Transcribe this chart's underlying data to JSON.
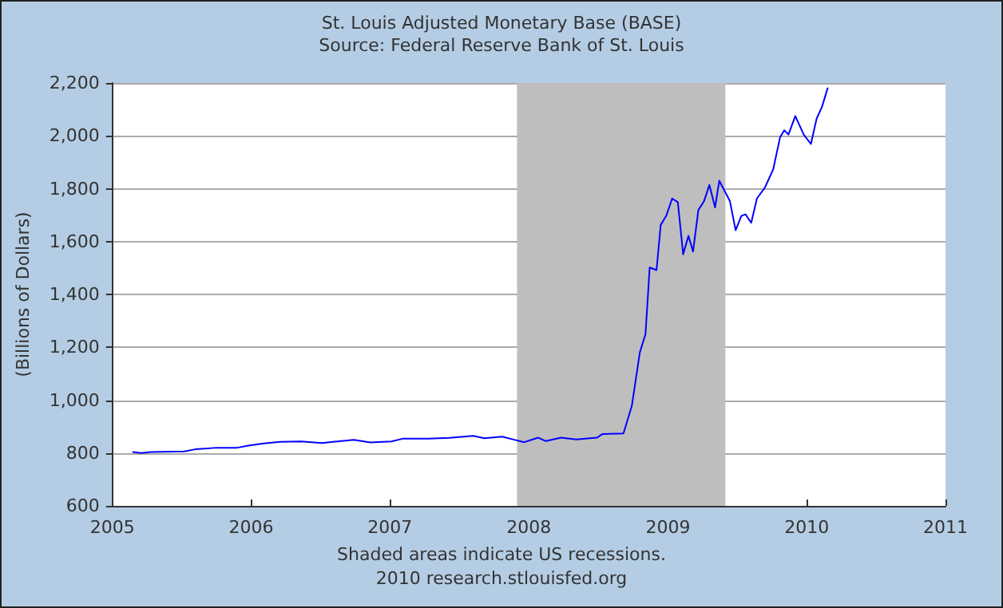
{
  "chart_data": {
    "type": "line",
    "title": "St. Louis Adjusted Monetary Base (BASE)",
    "subtitle": "Source: Federal Reserve Bank of St. Louis",
    "ylabel": "(Billions of Dollars)",
    "annotations": [
      "Shaded areas indicate US recessions.",
      "2010 research.stlouisfed.org"
    ],
    "x": [
      "2005-02-24",
      "2005-03-17",
      "2005-04-12",
      "2005-07-09",
      "2005-08-07",
      "2005-10-01",
      "2005-11-25",
      "2005-12-24",
      "2006-02-03",
      "2006-03-18",
      "2006-05-12",
      "2006-07-06",
      "2006-08-04",
      "2006-09-28",
      "2006-11-10",
      "2007-01-05",
      "2007-02-03",
      "2007-04-13",
      "2007-06-06",
      "2007-08-08",
      "2007-09-06",
      "2007-10-23",
      "2007-11-22",
      "2007-12-20",
      "2008-01-26",
      "2008-02-15",
      "2008-03-26",
      "2008-05-05",
      "2008-06-28",
      "2008-07-13",
      "2008-09-06",
      "2008-09-28",
      "2008-10-19",
      "2008-11-03",
      "2008-11-14",
      "2008-12-02",
      "2008-12-13",
      "2008-12-28",
      "2009-01-12",
      "2009-01-27",
      "2009-02-10",
      "2009-02-24",
      "2009-03-08",
      "2009-03-22",
      "2009-04-06",
      "2009-04-20",
      "2009-05-05",
      "2009-05-16",
      "2009-06-13",
      "2009-06-28",
      "2009-07-13",
      "2009-07-24",
      "2009-08-08",
      "2009-08-23",
      "2009-09-13",
      "2009-10-05",
      "2009-10-23",
      "2009-11-03",
      "2009-11-14",
      "2009-12-02",
      "2009-12-24",
      "2010-01-12",
      "2010-01-27",
      "2010-02-10",
      "2010-02-25"
    ],
    "series": [
      {
        "color": "#0000ff",
        "values": [
          804,
          800,
          804,
          806,
          814,
          820,
          820,
          828,
          836,
          842,
          844,
          838,
          842,
          850,
          840,
          844,
          854,
          854,
          857,
          865,
          856,
          862,
          851,
          841,
          858,
          845,
          858,
          851,
          858,
          872,
          874,
          978,
          1180,
          1250,
          1502,
          1492,
          1663,
          1699,
          1763,
          1749,
          1552,
          1622,
          1562,
          1719,
          1753,
          1814,
          1729,
          1830,
          1753,
          1643,
          1697,
          1703,
          1671,
          1763,
          1804,
          1874,
          1995,
          2021,
          2005,
          2075,
          2005,
          1969,
          2065,
          2109,
          2180
        ]
      }
    ],
    "xlim": [
      "2005",
      "2011"
    ],
    "xticks": [
      "2005",
      "2006",
      "2007",
      "2008",
      "2009",
      "2010",
      "2011"
    ],
    "ylim": [
      600,
      2200
    ],
    "yticks": [
      600,
      800,
      {
        "value": 1000,
        "label": "1,000"
      },
      {
        "value": 1200,
        "label": "1,200"
      },
      {
        "value": 1400,
        "label": "1,400"
      },
      {
        "value": 1600,
        "label": "1,600"
      },
      {
        "value": 1800,
        "label": "1,800"
      },
      {
        "value": 2000,
        "label": "2,000"
      },
      {
        "value": 2200,
        "label": "2,200"
      }
    ],
    "bands": [
      {
        "axis": "x",
        "from": "2007-12",
        "to": "2009-06",
        "color": "#bebebe"
      }
    ],
    "grid": "y",
    "marker": "none",
    "line_style": "solid"
  }
}
